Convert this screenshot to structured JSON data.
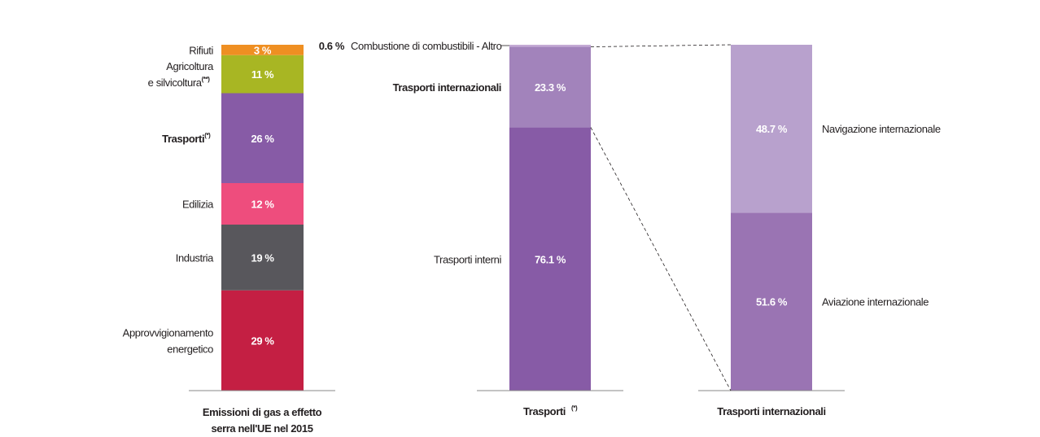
{
  "chart_data": [
    {
      "type": "stacked-bar",
      "category": "Emissioni di gas a effetto serra nell'UE nel 2015",
      "category_lines": [
        "Emissioni di gas a effetto",
        "serra nell’UE nel 2015"
      ],
      "unit": "%",
      "segments": [
        {
          "name": "Approvvigionamento energetico",
          "label_lines": [
            "Approvvigionamento",
            "energetico"
          ],
          "value": 29,
          "value_label": "29 %",
          "color": "#c41f43"
        },
        {
          "name": "Industria",
          "label_lines": [
            "Industria"
          ],
          "value": 19,
          "value_label": "19 %",
          "color": "#58575c"
        },
        {
          "name": "Edilizia",
          "label_lines": [
            "Edilizia"
          ],
          "value": 12,
          "value_label": "12 %",
          "color": "#ee4d7d"
        },
        {
          "name": "Trasporti",
          "label_lines": [
            "Trasporti"
          ],
          "sup": "(*)",
          "bold": true,
          "value": 26,
          "value_label": "26 %",
          "color": "#875ba6"
        },
        {
          "name": "Agricoltura e silvicoltura",
          "label_lines": [
            "Agricoltura",
            "e silvicoltura"
          ],
          "sup": "(**)",
          "value": 11,
          "value_label": "11 %",
          "color": "#a8b623"
        },
        {
          "name": "Rifiuti",
          "label_lines": [
            "Rifiuti"
          ],
          "value": 3,
          "value_label": "3 %",
          "color": "#ef8f22"
        }
      ]
    },
    {
      "type": "stacked-bar",
      "category": "Trasporti",
      "category_lines": [
        "Trasporti"
      ],
      "category_sup": "(*)",
      "unit": "%",
      "segments": [
        {
          "name": "Trasporti interni",
          "label_lines": [
            "Trasporti interni"
          ],
          "value": 76.1,
          "value_label": "76.1 %",
          "color": "#875ba6"
        },
        {
          "name": "Trasporti internazionali",
          "label_lines": [
            "Trasporti internazionali"
          ],
          "bold": true,
          "value": 23.3,
          "value_label": "23.3 %",
          "color": "#a283bb"
        },
        {
          "name": "Combustione di combustibili - Altro",
          "label_lines": [
            "Combustione di combustibili - Altro"
          ],
          "value": 0.6,
          "value_label": "0.6 %",
          "color": "#c4aad4",
          "outside": true
        }
      ]
    },
    {
      "type": "stacked-bar",
      "category": "Trasporti internazionali",
      "category_lines": [
        "Trasporti internazionali"
      ],
      "unit": "%",
      "segments": [
        {
          "name": "Aviazione internazionale",
          "label_lines": [
            "Aviazione internazionale"
          ],
          "value": 51.6,
          "value_label": "51.6 %",
          "color": "#9a74b3",
          "label_side": "right"
        },
        {
          "name": "Navigazione internazionale",
          "label_lines": [
            "Navigazione internazionale"
          ],
          "value": 48.7,
          "value_label": "48.7 %",
          "color": "#b8a1cd",
          "label_side": "right"
        }
      ]
    }
  ]
}
